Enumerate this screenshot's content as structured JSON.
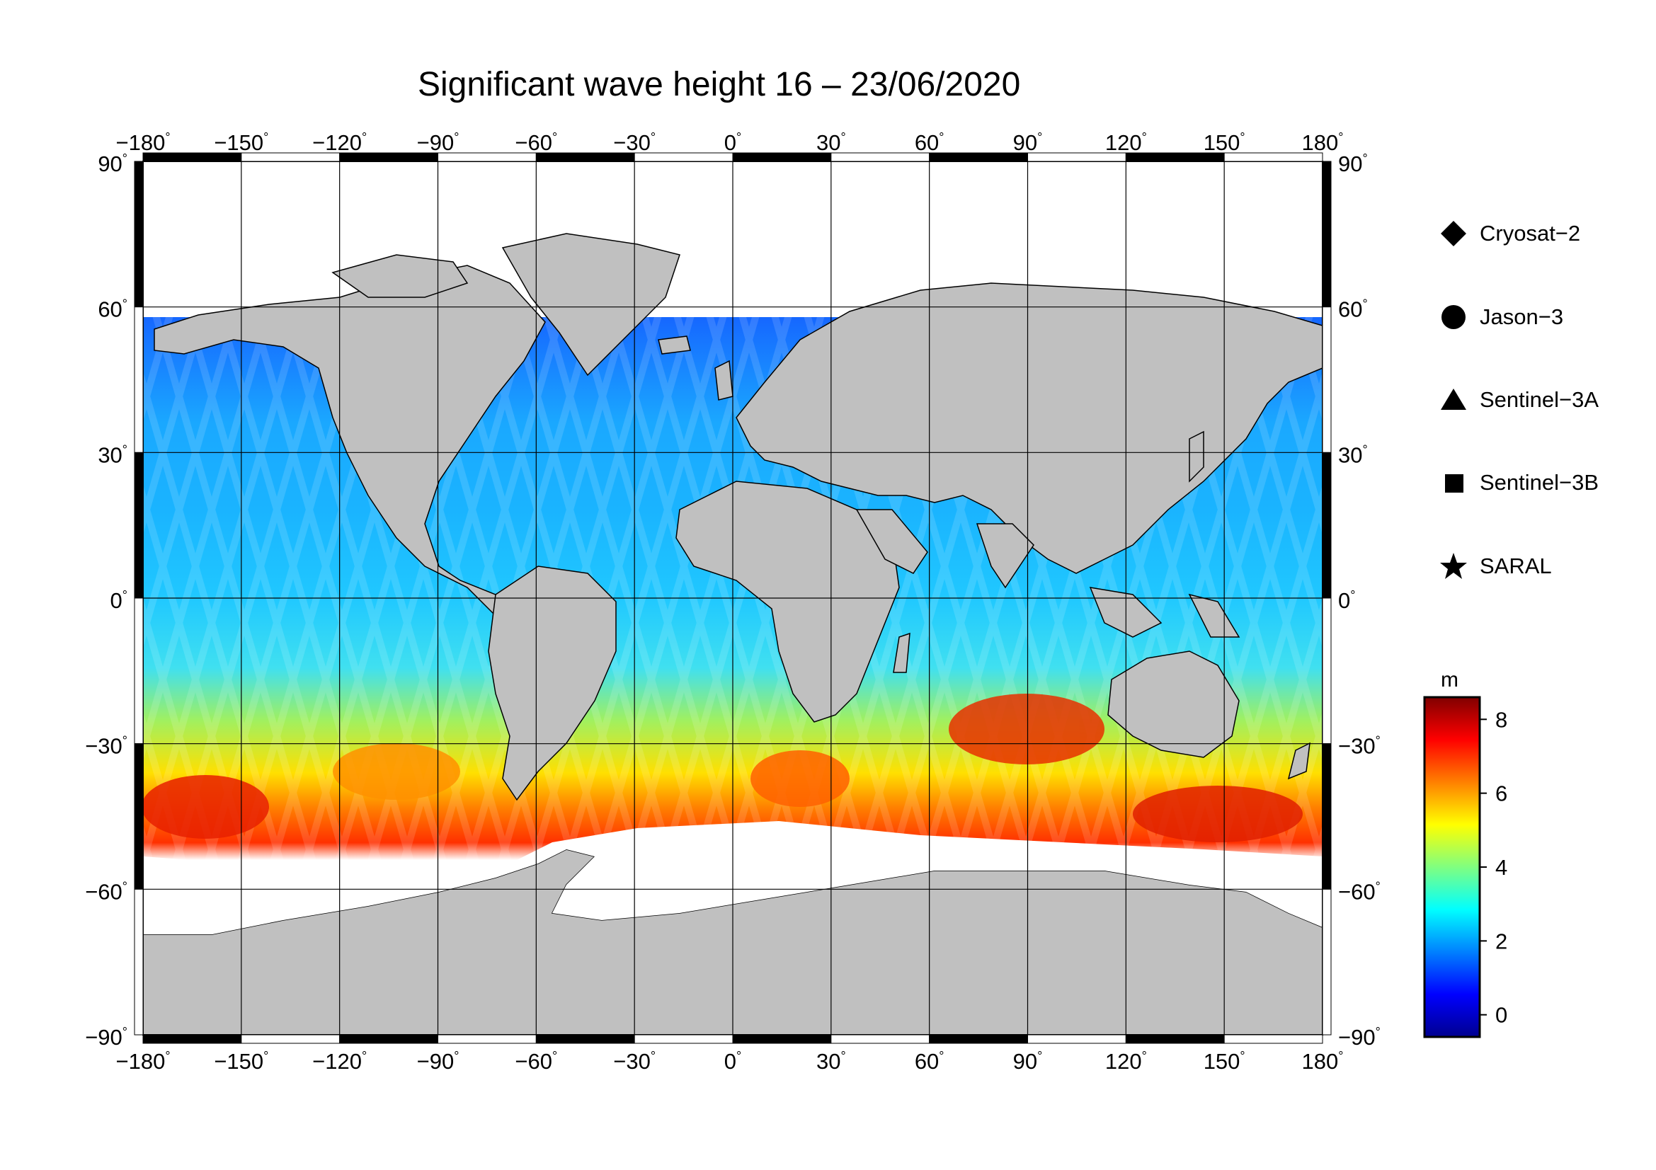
{
  "title": "Significant wave height 16 – 23/06/2020",
  "lon_ticks": [
    "−180",
    "−150",
    "−120",
    "−90",
    "−60",
    "−30",
    "0",
    "30",
    "60",
    "90",
    "120",
    "150",
    "180"
  ],
  "lat_ticks": [
    "90",
    "60",
    "30",
    "0",
    "−30",
    "−60",
    "−90"
  ],
  "lon_values": [
    -180,
    -150,
    -120,
    -90,
    -60,
    -30,
    0,
    30,
    60,
    90,
    120,
    150,
    180
  ],
  "lat_values": [
    90,
    60,
    30,
    0,
    -30,
    -60,
    -90
  ],
  "legend": [
    {
      "label": "Cryosat−2",
      "symbol": "diamond-icon"
    },
    {
      "label": "Jason−3",
      "symbol": "circle-icon"
    },
    {
      "label": "Sentinel−3A",
      "symbol": "triangle-icon"
    },
    {
      "label": "Sentinel−3B",
      "symbol": "square-icon"
    },
    {
      "label": "SARAL",
      "symbol": "star-icon"
    }
  ],
  "colorbar": {
    "unit": "m",
    "ticks": [
      "0",
      "2",
      "4",
      "6",
      "8"
    ],
    "tick_values": [
      0,
      2,
      4,
      6,
      8
    ],
    "range": [
      -0.6,
      8.6
    ],
    "colors": [
      "#00008f",
      "#0000ff",
      "#0080ff",
      "#00ffff",
      "#80ff80",
      "#ffff00",
      "#ff8000",
      "#ff0000",
      "#800000"
    ]
  },
  "colors": {
    "land": "#c0c0c0",
    "ice": "#ffffff",
    "frame": "#000000"
  }
}
